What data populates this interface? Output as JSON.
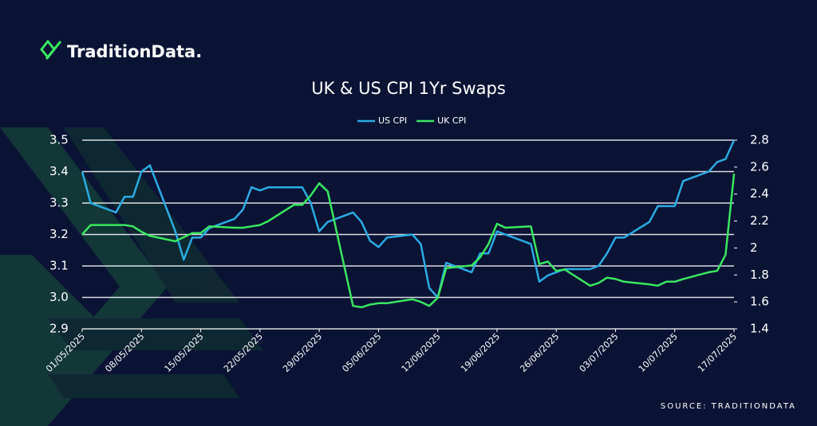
{
  "brand": "TraditionData.",
  "source": "SOURCE: TRADITIONDATA",
  "chart_data": {
    "type": "line",
    "title": "UK & US CPI 1Yr Swaps",
    "x": [
      "01/05/2025",
      "02/05/2025",
      "05/05/2025",
      "06/05/2025",
      "07/05/2025",
      "08/05/2025",
      "09/05/2025",
      "12/05/2025",
      "13/05/2025",
      "14/05/2025",
      "15/05/2025",
      "16/05/2025",
      "19/05/2025",
      "20/05/2025",
      "21/05/2025",
      "22/05/2025",
      "23/05/2025",
      "26/05/2025",
      "27/05/2025",
      "28/05/2025",
      "29/05/2025",
      "30/05/2025",
      "02/06/2025",
      "03/06/2025",
      "04/06/2025",
      "05/06/2025",
      "06/06/2025",
      "09/06/2025",
      "10/06/2025",
      "11/06/2025",
      "12/06/2025",
      "13/06/2025",
      "16/06/2025",
      "17/06/2025",
      "18/06/2025",
      "19/06/2025",
      "20/06/2025",
      "23/06/2025",
      "24/06/2025",
      "25/06/2025",
      "26/06/2025",
      "27/06/2025",
      "30/06/2025",
      "01/07/2025",
      "02/07/2025",
      "03/07/2025",
      "04/07/2025",
      "07/07/2025",
      "08/07/2025",
      "09/07/2025",
      "10/07/2025",
      "11/07/2025",
      "14/07/2025",
      "15/07/2025",
      "16/07/2025",
      "17/07/2025"
    ],
    "series": [
      {
        "name": "US CPI",
        "color": "#29abe2",
        "axis": "y",
        "values": [
          3.4,
          3.3,
          3.27,
          3.32,
          3.32,
          3.4,
          3.42,
          3.21,
          3.12,
          3.19,
          3.19,
          3.22,
          3.25,
          3.28,
          3.35,
          3.34,
          3.35,
          3.35,
          3.35,
          3.3,
          3.21,
          3.24,
          3.27,
          3.24,
          3.18,
          3.16,
          3.19,
          3.2,
          3.17,
          3.03,
          3.0,
          3.11,
          3.08,
          3.14,
          3.14,
          3.21,
          3.2,
          3.17,
          3.05,
          3.07,
          3.08,
          3.09,
          3.09,
          3.1,
          3.14,
          3.19,
          3.19,
          3.24,
          3.29,
          3.29,
          3.29,
          3.37,
          3.4,
          3.43,
          3.44,
          3.5
        ]
      },
      {
        "name": "UK CPI",
        "color": "#39e75f",
        "axis": "y2",
        "values": [
          2.1,
          2.17,
          2.17,
          2.17,
          2.16,
          2.12,
          2.09,
          2.05,
          2.08,
          2.11,
          2.11,
          2.16,
          2.15,
          2.15,
          2.16,
          2.17,
          2.2,
          2.32,
          2.32,
          2.39,
          2.48,
          2.42,
          1.57,
          1.56,
          1.58,
          1.59,
          1.59,
          1.62,
          1.6,
          1.57,
          1.63,
          1.85,
          1.87,
          1.93,
          2.03,
          2.18,
          2.15,
          2.16,
          1.88,
          1.9,
          1.83,
          1.84,
          1.72,
          1.74,
          1.78,
          1.77,
          1.75,
          1.73,
          1.72,
          1.75,
          1.75,
          1.77,
          1.82,
          1.83,
          1.95,
          2.55
        ]
      }
    ],
    "xlim": [
      "01/05/2025",
      "17/07/2025"
    ],
    "xticks": [
      "01/05/2025",
      "08/05/2025",
      "15/05/2025",
      "22/05/2025",
      "29/05/2025",
      "05/06/2025",
      "12/06/2025",
      "19/06/2025",
      "26/06/2025",
      "03/07/2025",
      "10/07/2025",
      "17/07/2025"
    ],
    "ylim": [
      2.9,
      3.5
    ],
    "yticks": [
      2.9,
      {
        "value": 3,
        "label": "3.0"
      },
      3.1,
      3.2,
      3.3,
      3.4,
      3.5
    ],
    "y2lim": [
      1.4,
      2.8
    ],
    "y2ticks": [
      1.4,
      1.6,
      1.8,
      2,
      2.2,
      2.4,
      2.6,
      2.8
    ],
    "grid": true,
    "legend": "top"
  }
}
